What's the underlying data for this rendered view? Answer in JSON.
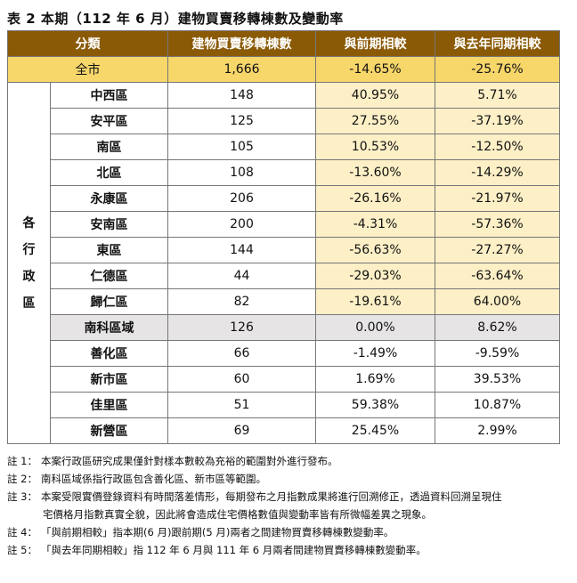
{
  "title": "表 2 本期（112 年 6 月）建物買賣移轉棟數及變動率",
  "headers": [
    "分類",
    "建物買賣移轉棟數",
    "與前期相較",
    "與去年同期相較"
  ],
  "total": {
    "label": "全市",
    "count": "1,666",
    "prev": "-14.65%",
    "yoy": "-25.76%"
  },
  "group_label": [
    "各",
    "行",
    "政",
    "區"
  ],
  "rows": [
    {
      "name": "中西區",
      "count": "148",
      "prev": "40.95%",
      "yoy": "5.71%"
    },
    {
      "name": "安平區",
      "count": "125",
      "prev": "27.55%",
      "yoy": "-37.19%"
    },
    {
      "name": "南區",
      "count": "105",
      "prev": "10.53%",
      "yoy": "-12.50%"
    },
    {
      "name": "北區",
      "count": "108",
      "prev": "-13.60%",
      "yoy": "-14.29%"
    },
    {
      "name": "永康區",
      "count": "206",
      "prev": "-26.16%",
      "yoy": "-21.97%"
    },
    {
      "name": "安南區",
      "count": "200",
      "prev": "-4.31%",
      "yoy": "-57.36%"
    },
    {
      "name": "東區",
      "count": "144",
      "prev": "-56.63%",
      "yoy": "-27.27%"
    },
    {
      "name": "仁德區",
      "count": "44",
      "prev": "-29.03%",
      "yoy": "-63.64%"
    },
    {
      "name": "歸仁區",
      "count": "82",
      "prev": "-19.61%",
      "yoy": "64.00%"
    },
    {
      "name": "南科區域",
      "count": "126",
      "prev": "0.00%",
      "yoy": "8.62%"
    },
    {
      "name": "善化區",
      "count": "66",
      "prev": "-1.49%",
      "yoy": "-9.59%"
    },
    {
      "name": "新市區",
      "count": "60",
      "prev": "1.69%",
      "yoy": "39.53%"
    },
    {
      "name": "佳里區",
      "count": "51",
      "prev": "59.38%",
      "yoy": "10.87%"
    },
    {
      "name": "新營區",
      "count": "69",
      "prev": "25.45%",
      "yoy": "2.99%"
    }
  ],
  "notes": [
    {
      "label": "註 1：",
      "text": "本案行政區研究成果僅針對樣本數較為充裕的範圍對外進行發布。"
    },
    {
      "label": "註 2：",
      "text": "南科區域係指行政區包含善化區、新市區等範圍。"
    },
    {
      "label": "註 3：",
      "text": "本案受限實價登錄資料有時間落差情形，每期發布之月指數成果將進行回溯修正，透過資料回溯呈現住"
    },
    {
      "label": "",
      "text": "宅價格月指數真實全貌，因此將會造成住宅價格數值與變動率皆有所微幅差異之現象。"
    },
    {
      "label": "註 4：",
      "text": "「與前期相較」指本期(6 月)跟前期(5 月)兩者之間建物買賣移轉棟數變動率。"
    },
    {
      "label": "註 5：",
      "text": "「與去年同期相較」指 112 年 6 月與 111 年 6 月兩者間建物買賣移轉棟數變動率。"
    }
  ]
}
